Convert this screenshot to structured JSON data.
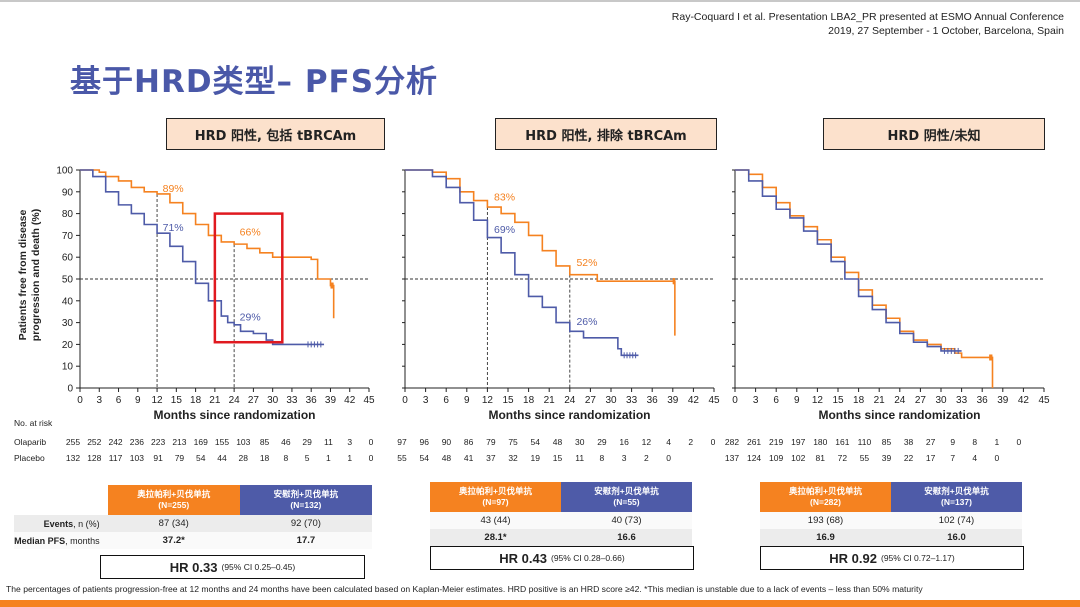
{
  "citation": "Ray-Coquard I et al. Presentation LBA2_PR presented at ESMO Annual Conference 2019, 27 September - 1 October, Barcelona, Spain",
  "title": "基于HRD类型– PFS分析",
  "colors": {
    "olaparib": "#f58220",
    "placebo": "#4e5ba8",
    "highlight": "#e0191f"
  },
  "risk_table": {
    "header": "No. at risk",
    "row_labels": [
      "Olaparib",
      "Placebo"
    ]
  },
  "footnote": "The percentages of patients progression-free at 12 months and 24 months have been calculated based on Kaplan-Meier estimates. HRD positive is an HRD score ≥42. *This median is unstable due to a lack of events – less than 50% maturity",
  "chart_data": [
    {
      "type": "line",
      "title": "HRD 阳性, 包括 tBRCAm",
      "xlabel": "Months since randomization",
      "ylabel": "Patients free from disease progression and death (%)",
      "xlim": [
        0,
        45
      ],
      "ylim": [
        0,
        100
      ],
      "xticks": [
        0,
        3,
        6,
        9,
        12,
        15,
        18,
        21,
        24,
        27,
        30,
        33,
        36,
        39,
        42,
        45
      ],
      "yticks": [
        0,
        10,
        20,
        30,
        40,
        50,
        60,
        70,
        80,
        90,
        100
      ],
      "series": [
        {
          "name": "Olaparib",
          "color": "#f58220",
          "points": [
            [
              0,
              100
            ],
            [
              3,
              99
            ],
            [
              4,
              97
            ],
            [
              6,
              95
            ],
            [
              8,
              92
            ],
            [
              10,
              90
            ],
            [
              12,
              89
            ],
            [
              14,
              85
            ],
            [
              16,
              80
            ],
            [
              18,
              75
            ],
            [
              20,
              70
            ],
            [
              22,
              67
            ],
            [
              24,
              66
            ],
            [
              26,
              64
            ],
            [
              28,
              62
            ],
            [
              30,
              60
            ],
            [
              33,
              60
            ],
            [
              36,
              59
            ],
            [
              37,
              50
            ],
            [
              39,
              47
            ],
            [
              39.5,
              32
            ]
          ]
        },
        {
          "name": "Placebo",
          "color": "#4e5ba8",
          "points": [
            [
              0,
              100
            ],
            [
              2,
              97
            ],
            [
              4,
              90
            ],
            [
              6,
              84
            ],
            [
              8,
              80
            ],
            [
              10,
              75
            ],
            [
              12,
              71
            ],
            [
              14,
              65
            ],
            [
              16,
              58
            ],
            [
              18,
              48
            ],
            [
              20,
              40
            ],
            [
              22,
              33
            ],
            [
              23,
              30
            ],
            [
              24,
              29
            ],
            [
              25,
              26
            ],
            [
              27,
              25
            ],
            [
              28.5,
              25
            ],
            [
              29,
              22
            ],
            [
              30,
              20
            ],
            [
              35,
              20
            ],
            [
              38,
              20
            ]
          ]
        }
      ],
      "annotations": [
        {
          "text": "89%",
          "x": 14.5,
          "y": 90,
          "series": "Olaparib"
        },
        {
          "text": "71%",
          "x": 14.5,
          "y": 72,
          "series": "Placebo"
        },
        {
          "text": "66%",
          "x": 26.5,
          "y": 70,
          "series": "Olaparib"
        },
        {
          "text": "29%",
          "x": 26.5,
          "y": 31,
          "series": "Placebo"
        }
      ],
      "reference_lines": {
        "median_y": 50,
        "x_marks": [
          12,
          24
        ]
      },
      "highlight_box": {
        "x": [
          21,
          31.5
        ],
        "y": [
          21,
          80
        ]
      },
      "at_risk": {
        "Olaparib": [
          "255",
          "252",
          "242",
          "236",
          "223",
          "213",
          "169",
          "155",
          "103",
          "85",
          "46",
          "29",
          "11",
          "3",
          "0"
        ],
        "Placebo": [
          "132",
          "128",
          "117",
          "103",
          "91",
          "79",
          "54",
          "44",
          "28",
          "18",
          "8",
          "5",
          "1",
          "1",
          "0"
        ]
      },
      "table": {
        "header_olaparib": [
          "奥拉帕利+贝伐单抗",
          "(N=255)"
        ],
        "header_placebo": [
          "安慰剂+贝伐单抗",
          "(N=132)"
        ],
        "rows": [
          {
            "label": "Events, n (%)",
            "olaparib": "87 (34)",
            "placebo": "92 (70)"
          },
          {
            "label": "Median PFS, months",
            "olaparib": "37.2*",
            "placebo": "17.7"
          }
        ],
        "hr": "HR 0.33",
        "ci": "(95% CI 0.25–0.45)"
      }
    },
    {
      "type": "line",
      "title": "HRD 阳性, 排除 tBRCAm",
      "xlabel": "Months since randomization",
      "xlim": [
        0,
        45
      ],
      "ylim": [
        0,
        100
      ],
      "xticks": [
        0,
        3,
        6,
        9,
        12,
        15,
        18,
        21,
        24,
        27,
        30,
        33,
        36,
        39,
        42,
        45
      ],
      "series": [
        {
          "name": "Olaparib",
          "color": "#f58220",
          "points": [
            [
              0,
              100
            ],
            [
              4,
              99
            ],
            [
              6,
              96
            ],
            [
              8,
              90
            ],
            [
              10,
              86
            ],
            [
              12,
              83
            ],
            [
              14,
              80
            ],
            [
              16,
              76
            ],
            [
              18,
              70
            ],
            [
              20,
              63
            ],
            [
              22,
              56
            ],
            [
              24,
              52
            ],
            [
              27,
              52
            ],
            [
              28,
              49
            ],
            [
              33,
              49
            ],
            [
              39,
              49
            ],
            [
              39.3,
              24
            ]
          ]
        },
        {
          "name": "Placebo",
          "color": "#4e5ba8",
          "points": [
            [
              0,
              100
            ],
            [
              4,
              97
            ],
            [
              6,
              92
            ],
            [
              8,
              85
            ],
            [
              10,
              77
            ],
            [
              12,
              69
            ],
            [
              14,
              62
            ],
            [
              16,
              52
            ],
            [
              18,
              42
            ],
            [
              20,
              37
            ],
            [
              22,
              30
            ],
            [
              24,
              26
            ],
            [
              26,
              23
            ],
            [
              29,
              23
            ],
            [
              31,
              18
            ],
            [
              31.5,
              15
            ],
            [
              34,
              15
            ]
          ]
        }
      ],
      "annotations": [
        {
          "text": "83%",
          "x": 14.5,
          "y": 86,
          "series": "Olaparib"
        },
        {
          "text": "69%",
          "x": 14.5,
          "y": 71,
          "series": "Placebo"
        },
        {
          "text": "52%",
          "x": 26.5,
          "y": 56,
          "series": "Olaparib"
        },
        {
          "text": "26%",
          "x": 26.5,
          "y": 29,
          "series": "Placebo"
        }
      ],
      "reference_lines": {
        "median_y": 50,
        "x_marks": [
          12,
          24
        ]
      },
      "at_risk": {
        "Olaparib": [
          "97",
          "96",
          "90",
          "86",
          "79",
          "75",
          "54",
          "48",
          "30",
          "29",
          "16",
          "12",
          "4",
          "2",
          "0"
        ],
        "Placebo": [
          "55",
          "54",
          "48",
          "41",
          "37",
          "32",
          "19",
          "15",
          "11",
          "8",
          "3",
          "2",
          "0"
        ]
      },
      "table": {
        "header_olaparib": [
          "奥拉帕利+贝伐单抗",
          "(N=97)"
        ],
        "header_placebo": [
          "安慰剂+贝伐单抗",
          "(N=55)"
        ],
        "rows": [
          {
            "label": "",
            "olaparib": "43 (44)",
            "placebo": "40 (73)"
          },
          {
            "label": "",
            "olaparib": "28.1*",
            "placebo": "16.6"
          }
        ],
        "hr": "HR 0.43",
        "ci": "(95% CI 0.28–0.66)"
      }
    },
    {
      "type": "line",
      "title": "HRD 阴性/未知",
      "xlabel": "Months since randomization",
      "xlim": [
        0,
        45
      ],
      "ylim": [
        0,
        100
      ],
      "xticks": [
        0,
        3,
        6,
        9,
        12,
        15,
        18,
        21,
        24,
        27,
        30,
        33,
        36,
        39,
        42,
        45
      ],
      "series": [
        {
          "name": "Olaparib",
          "color": "#f58220",
          "points": [
            [
              0,
              100
            ],
            [
              2,
              98
            ],
            [
              4,
              92
            ],
            [
              6,
              85
            ],
            [
              8,
              79
            ],
            [
              10,
              74
            ],
            [
              12,
              68
            ],
            [
              14,
              60
            ],
            [
              16,
              53
            ],
            [
              18,
              45
            ],
            [
              20,
              38
            ],
            [
              22,
              32
            ],
            [
              24,
              26
            ],
            [
              26,
              22
            ],
            [
              28,
              20
            ],
            [
              30,
              18
            ],
            [
              32,
              16
            ],
            [
              33,
              14
            ],
            [
              37,
              14
            ],
            [
              37.5,
              0
            ]
          ]
        },
        {
          "name": "Placebo",
          "color": "#4e5ba8",
          "points": [
            [
              0,
              100
            ],
            [
              2,
              95
            ],
            [
              4,
              88
            ],
            [
              6,
              82
            ],
            [
              8,
              78
            ],
            [
              10,
              72
            ],
            [
              12,
              66
            ],
            [
              14,
              58
            ],
            [
              16,
              50
            ],
            [
              18,
              42
            ],
            [
              20,
              36
            ],
            [
              22,
              30
            ],
            [
              24,
              25
            ],
            [
              26,
              21
            ],
            [
              28,
              19
            ],
            [
              30,
              17
            ],
            [
              33,
              17
            ]
          ]
        }
      ],
      "reference_lines": {
        "median_y": 50,
        "x_marks": []
      },
      "at_risk": {
        "Olaparib": [
          "282",
          "261",
          "219",
          "197",
          "180",
          "161",
          "110",
          "85",
          "38",
          "27",
          "9",
          "8",
          "1",
          "0"
        ],
        "Placebo": [
          "137",
          "124",
          "109",
          "102",
          "81",
          "72",
          "55",
          "39",
          "22",
          "17",
          "7",
          "4",
          "0"
        ]
      },
      "table": {
        "header_olaparib": [
          "奥拉帕利+贝伐单抗",
          "(N=282)"
        ],
        "header_placebo": [
          "安慰剂+贝伐单抗",
          "(N=137)"
        ],
        "rows": [
          {
            "label": "",
            "olaparib": "193 (68)",
            "placebo": "102 (74)"
          },
          {
            "label": "",
            "olaparib": "16.9",
            "placebo": "16.0"
          }
        ],
        "hr": "HR 0.92",
        "ci": "(95% CI 0.72–1.17)"
      }
    }
  ]
}
